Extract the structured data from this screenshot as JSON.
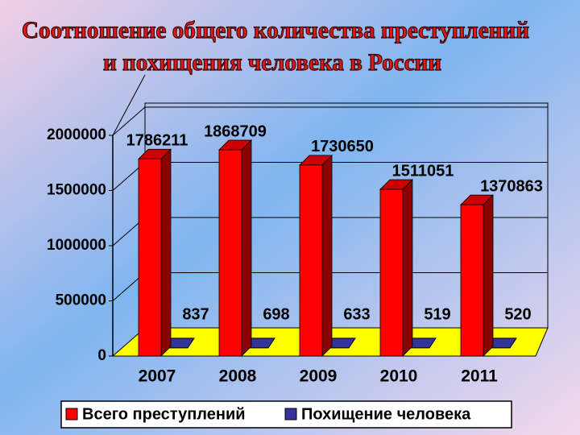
{
  "chart_data": {
    "type": "bar3d",
    "title": [
      "Соотношение общего количества преступлений",
      "и похищения человека в России"
    ],
    "categories": [
      "2007",
      "2008",
      "2009",
      "2010",
      "2011"
    ],
    "series": [
      {
        "name": "Всего преступлений",
        "color": "#ff0000",
        "values": [
          1786211,
          1868709,
          1730650,
          1511051,
          1370863
        ]
      },
      {
        "name": "Похищение человека",
        "color": "#333399",
        "values": [
          837,
          698,
          633,
          519,
          520
        ]
      }
    ],
    "ylim": [
      0,
      2000000
    ],
    "yticks": [
      0,
      500000,
      1000000,
      1500000,
      2000000
    ],
    "grid": true,
    "legend": "bottom"
  }
}
